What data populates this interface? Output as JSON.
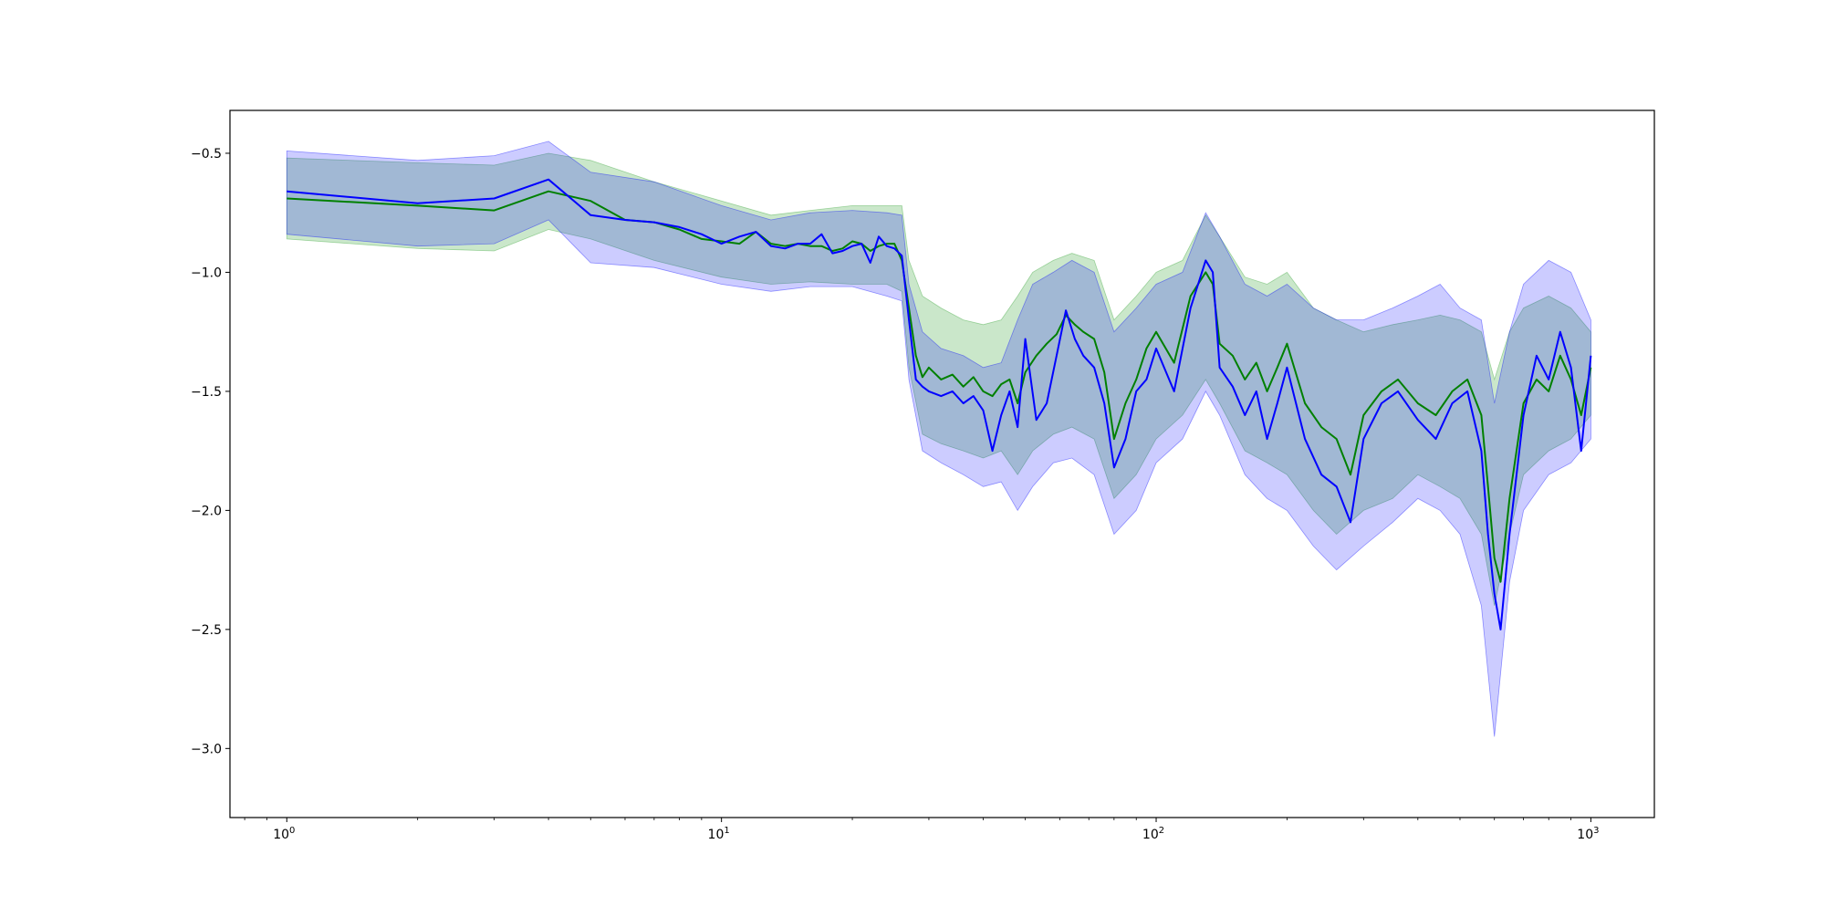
{
  "chart_data": {
    "type": "line",
    "title": "",
    "xlabel": "",
    "ylabel": "",
    "xscale": "log",
    "xlim": [
      0.74,
      1400
    ],
    "ylim": [
      -3.29,
      -0.32
    ],
    "grid": false,
    "legend": "none",
    "x_ticks": [
      {
        "value": 1,
        "base": "10",
        "exp": "0"
      },
      {
        "value": 10,
        "base": "10",
        "exp": "1"
      },
      {
        "value": 100,
        "base": "10",
        "exp": "2"
      },
      {
        "value": 1000,
        "base": "10",
        "exp": "3"
      }
    ],
    "y_ticks": [
      {
        "value": -0.5,
        "label": "−0.5"
      },
      {
        "value": -1.0,
        "label": "−1.0"
      },
      {
        "value": -1.5,
        "label": "−1.5"
      },
      {
        "value": -2.0,
        "label": "−2.0"
      },
      {
        "value": -2.5,
        "label": "−2.5"
      },
      {
        "value": -3.0,
        "label": "−3.0"
      }
    ],
    "series": [
      {
        "color": "#008000",
        "band_color": "#2ca02c",
        "band_opacity": 0.25,
        "line_x": [
          1,
          2,
          3,
          4,
          5,
          6,
          7,
          8,
          9,
          10,
          11,
          12,
          13,
          14,
          15,
          16,
          17,
          18,
          19,
          20,
          21,
          22,
          23,
          24,
          25,
          26,
          27,
          28,
          29,
          30,
          32,
          34,
          36,
          38,
          40,
          42,
          44,
          46,
          48,
          50,
          53,
          56,
          59,
          62,
          65,
          68,
          72,
          76,
          80,
          85,
          90,
          95,
          100,
          110,
          120,
          130,
          135,
          140,
          150,
          160,
          170,
          180,
          190,
          200,
          220,
          240,
          260,
          280,
          300,
          330,
          360,
          400,
          440,
          480,
          520,
          560,
          580,
          600,
          620,
          650,
          700,
          750,
          800,
          850,
          900,
          950,
          1000
        ],
        "line_y": [
          -0.69,
          -0.72,
          -0.74,
          -0.66,
          -0.7,
          -0.78,
          -0.79,
          -0.82,
          -0.86,
          -0.87,
          -0.88,
          -0.83,
          -0.88,
          -0.89,
          -0.88,
          -0.89,
          -0.89,
          -0.91,
          -0.9,
          -0.87,
          -0.88,
          -0.91,
          -0.89,
          -0.88,
          -0.88,
          -0.95,
          -1.15,
          -1.35,
          -1.44,
          -1.4,
          -1.45,
          -1.43,
          -1.48,
          -1.44,
          -1.5,
          -1.52,
          -1.47,
          -1.45,
          -1.55,
          -1.42,
          -1.35,
          -1.3,
          -1.26,
          -1.18,
          -1.22,
          -1.25,
          -1.28,
          -1.42,
          -1.7,
          -1.55,
          -1.45,
          -1.32,
          -1.25,
          -1.38,
          -1.1,
          -1.0,
          -1.05,
          -1.3,
          -1.35,
          -1.45,
          -1.38,
          -1.5,
          -1.4,
          -1.3,
          -1.55,
          -1.65,
          -1.7,
          -1.85,
          -1.6,
          -1.5,
          -1.45,
          -1.55,
          -1.6,
          -1.5,
          -1.45,
          -1.6,
          -1.9,
          -2.2,
          -2.3,
          -1.95,
          -1.55,
          -1.45,
          -1.5,
          -1.35,
          -1.45,
          -1.6,
          -1.4
        ],
        "band_x": [
          1,
          2,
          3,
          4,
          5,
          7,
          10,
          13,
          16,
          20,
          24,
          26,
          27,
          29,
          32,
          36,
          40,
          44,
          48,
          52,
          58,
          64,
          72,
          80,
          90,
          100,
          115,
          130,
          140,
          160,
          180,
          200,
          230,
          260,
          300,
          350,
          400,
          450,
          500,
          560,
          600,
          650,
          700,
          800,
          900,
          1000
        ],
        "band_hi": [
          -0.52,
          -0.54,
          -0.55,
          -0.5,
          -0.53,
          -0.62,
          -0.7,
          -0.76,
          -0.74,
          -0.72,
          -0.72,
          -0.72,
          -0.95,
          -1.1,
          -1.15,
          -1.2,
          -1.22,
          -1.2,
          -1.1,
          -1.0,
          -0.95,
          -0.92,
          -0.95,
          -1.2,
          -1.1,
          -1.0,
          -0.95,
          -0.76,
          -0.85,
          -1.02,
          -1.05,
          -1.0,
          -1.15,
          -1.2,
          -1.25,
          -1.22,
          -1.2,
          -1.18,
          -1.2,
          -1.25,
          -1.45,
          -1.25,
          -1.15,
          -1.1,
          -1.15,
          -1.25
        ],
        "band_lo": [
          -0.86,
          -0.9,
          -0.91,
          -0.82,
          -0.86,
          -0.95,
          -1.02,
          -1.05,
          -1.04,
          -1.05,
          -1.05,
          -1.08,
          -1.4,
          -1.68,
          -1.72,
          -1.75,
          -1.78,
          -1.75,
          -1.85,
          -1.75,
          -1.68,
          -1.65,
          -1.7,
          -1.95,
          -1.85,
          -1.7,
          -1.6,
          -1.45,
          -1.55,
          -1.75,
          -1.8,
          -1.85,
          -2.0,
          -2.1,
          -2.0,
          -1.95,
          -1.85,
          -1.9,
          -1.95,
          -2.1,
          -2.4,
          -2.1,
          -1.85,
          -1.75,
          -1.7,
          -1.6
        ]
      },
      {
        "color": "#0000ff",
        "band_color": "#0000ff",
        "band_opacity": 0.2,
        "line_x": [
          1,
          2,
          3,
          4,
          5,
          6,
          7,
          8,
          9,
          10,
          11,
          12,
          13,
          14,
          15,
          16,
          17,
          18,
          19,
          20,
          21,
          22,
          23,
          24,
          25,
          26,
          27,
          28,
          29,
          30,
          32,
          34,
          36,
          38,
          40,
          42,
          44,
          46,
          48,
          50,
          53,
          56,
          59,
          62,
          65,
          68,
          72,
          76,
          80,
          85,
          90,
          95,
          100,
          110,
          120,
          130,
          135,
          140,
          150,
          160,
          170,
          180,
          190,
          200,
          220,
          240,
          260,
          280,
          300,
          330,
          360,
          400,
          440,
          480,
          520,
          560,
          580,
          600,
          620,
          650,
          700,
          750,
          800,
          850,
          900,
          950,
          1000
        ],
        "line_y": [
          -0.66,
          -0.71,
          -0.69,
          -0.61,
          -0.76,
          -0.78,
          -0.79,
          -0.81,
          -0.84,
          -0.88,
          -0.85,
          -0.83,
          -0.89,
          -0.9,
          -0.88,
          -0.88,
          -0.84,
          -0.92,
          -0.91,
          -0.89,
          -0.88,
          -0.96,
          -0.85,
          -0.89,
          -0.9,
          -0.93,
          -1.2,
          -1.45,
          -1.48,
          -1.5,
          -1.52,
          -1.5,
          -1.55,
          -1.52,
          -1.58,
          -1.75,
          -1.6,
          -1.5,
          -1.65,
          -1.28,
          -1.62,
          -1.55,
          -1.35,
          -1.16,
          -1.28,
          -1.35,
          -1.4,
          -1.55,
          -1.82,
          -1.7,
          -1.5,
          -1.45,
          -1.32,
          -1.5,
          -1.15,
          -0.95,
          -1.0,
          -1.4,
          -1.48,
          -1.6,
          -1.5,
          -1.7,
          -1.55,
          -1.4,
          -1.7,
          -1.85,
          -1.9,
          -2.05,
          -1.7,
          -1.55,
          -1.5,
          -1.62,
          -1.7,
          -1.55,
          -1.5,
          -1.75,
          -2.1,
          -2.35,
          -2.5,
          -2.1,
          -1.6,
          -1.35,
          -1.45,
          -1.25,
          -1.4,
          -1.75,
          -1.35
        ],
        "band_x": [
          1,
          2,
          3,
          4,
          5,
          7,
          10,
          13,
          16,
          20,
          24,
          26,
          27,
          29,
          32,
          36,
          40,
          44,
          48,
          52,
          58,
          64,
          72,
          80,
          90,
          100,
          115,
          130,
          140,
          160,
          180,
          200,
          230,
          260,
          300,
          350,
          400,
          450,
          500,
          560,
          600,
          650,
          700,
          800,
          900,
          1000
        ],
        "band_hi": [
          -0.49,
          -0.53,
          -0.51,
          -0.45,
          -0.58,
          -0.62,
          -0.72,
          -0.78,
          -0.75,
          -0.74,
          -0.75,
          -0.76,
          -1.05,
          -1.25,
          -1.32,
          -1.35,
          -1.4,
          -1.38,
          -1.2,
          -1.05,
          -1.0,
          -0.95,
          -1.0,
          -1.25,
          -1.15,
          -1.05,
          -1.0,
          -0.75,
          -0.85,
          -1.05,
          -1.1,
          -1.05,
          -1.15,
          -1.2,
          -1.2,
          -1.15,
          -1.1,
          -1.05,
          -1.15,
          -1.2,
          -1.55,
          -1.25,
          -1.05,
          -0.95,
          -1.0,
          -1.2
        ],
        "band_lo": [
          -0.84,
          -0.89,
          -0.88,
          -0.78,
          -0.96,
          -0.98,
          -1.05,
          -1.08,
          -1.06,
          -1.06,
          -1.1,
          -1.12,
          -1.45,
          -1.75,
          -1.8,
          -1.85,
          -1.9,
          -1.88,
          -2.0,
          -1.9,
          -1.8,
          -1.78,
          -1.85,
          -2.1,
          -2.0,
          -1.8,
          -1.7,
          -1.5,
          -1.6,
          -1.85,
          -1.95,
          -2.0,
          -2.15,
          -2.25,
          -2.15,
          -2.05,
          -1.95,
          -2.0,
          -2.1,
          -2.4,
          -2.95,
          -2.3,
          -2.0,
          -1.85,
          -1.8,
          -1.7
        ]
      }
    ]
  }
}
